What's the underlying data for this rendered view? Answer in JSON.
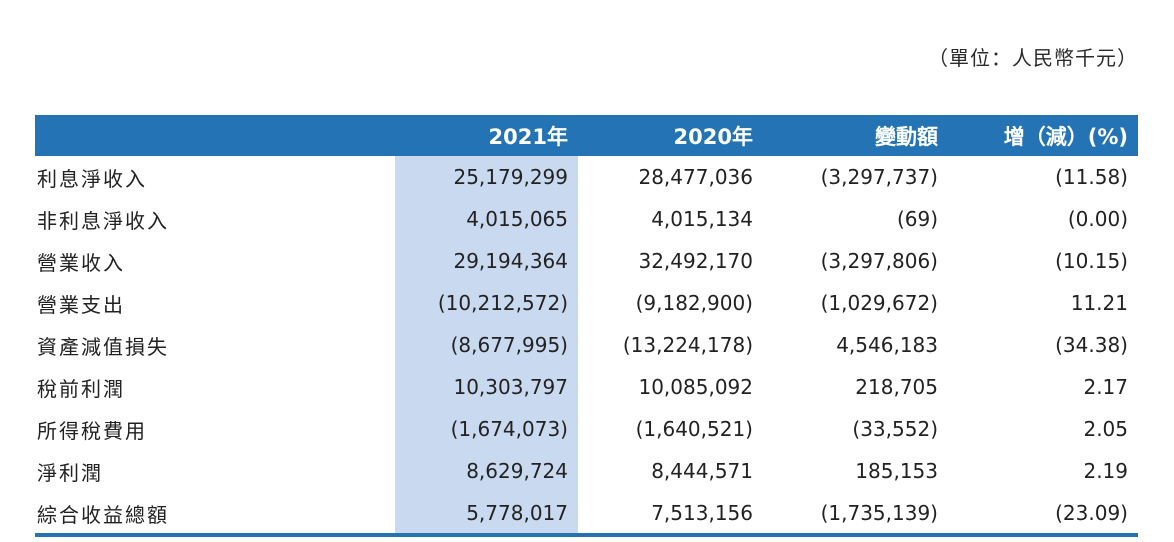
{
  "unit_note": "（單位：人民幣千元）",
  "colors": {
    "header_bg": "#2473b5",
    "highlight_col": "#c9d9ef",
    "bottom_rule": "#2473b5"
  },
  "table": {
    "headers": {
      "label": "",
      "y2021": "2021年",
      "y2020": "2020年",
      "change": "變動額",
      "pct": "增（減）(%)"
    },
    "rows": [
      {
        "label": "利息淨收入",
        "y2021": "25,179,299",
        "y2020": "28,477,036",
        "change": "(3,297,737)",
        "pct": "(11.58)"
      },
      {
        "label": "非利息淨收入",
        "y2021": "4,015,065",
        "y2020": "4,015,134",
        "change": "(69)",
        "pct": "(0.00)"
      },
      {
        "label": "營業收入",
        "y2021": "29,194,364",
        "y2020": "32,492,170",
        "change": "(3,297,806)",
        "pct": "(10.15)"
      },
      {
        "label": "營業支出",
        "y2021": "(10,212,572)",
        "y2020": "(9,182,900)",
        "change": "(1,029,672)",
        "pct": "11.21"
      },
      {
        "label": "資產減值損失",
        "y2021": "(8,677,995)",
        "y2020": "(13,224,178)",
        "change": "4,546,183",
        "pct": "(34.38)"
      },
      {
        "label": "稅前利潤",
        "y2021": "10,303,797",
        "y2020": "10,085,092",
        "change": "218,705",
        "pct": "2.17"
      },
      {
        "label": "所得稅費用",
        "y2021": "(1,674,073)",
        "y2020": "(1,640,521)",
        "change": "(33,552)",
        "pct": "2.05"
      },
      {
        "label": "淨利潤",
        "y2021": "8,629,724",
        "y2020": "8,444,571",
        "change": "185,153",
        "pct": "2.19"
      },
      {
        "label": "綜合收益總額",
        "y2021": "5,778,017",
        "y2020": "7,513,156",
        "change": "(1,735,139)",
        "pct": "(23.09)"
      }
    ]
  }
}
